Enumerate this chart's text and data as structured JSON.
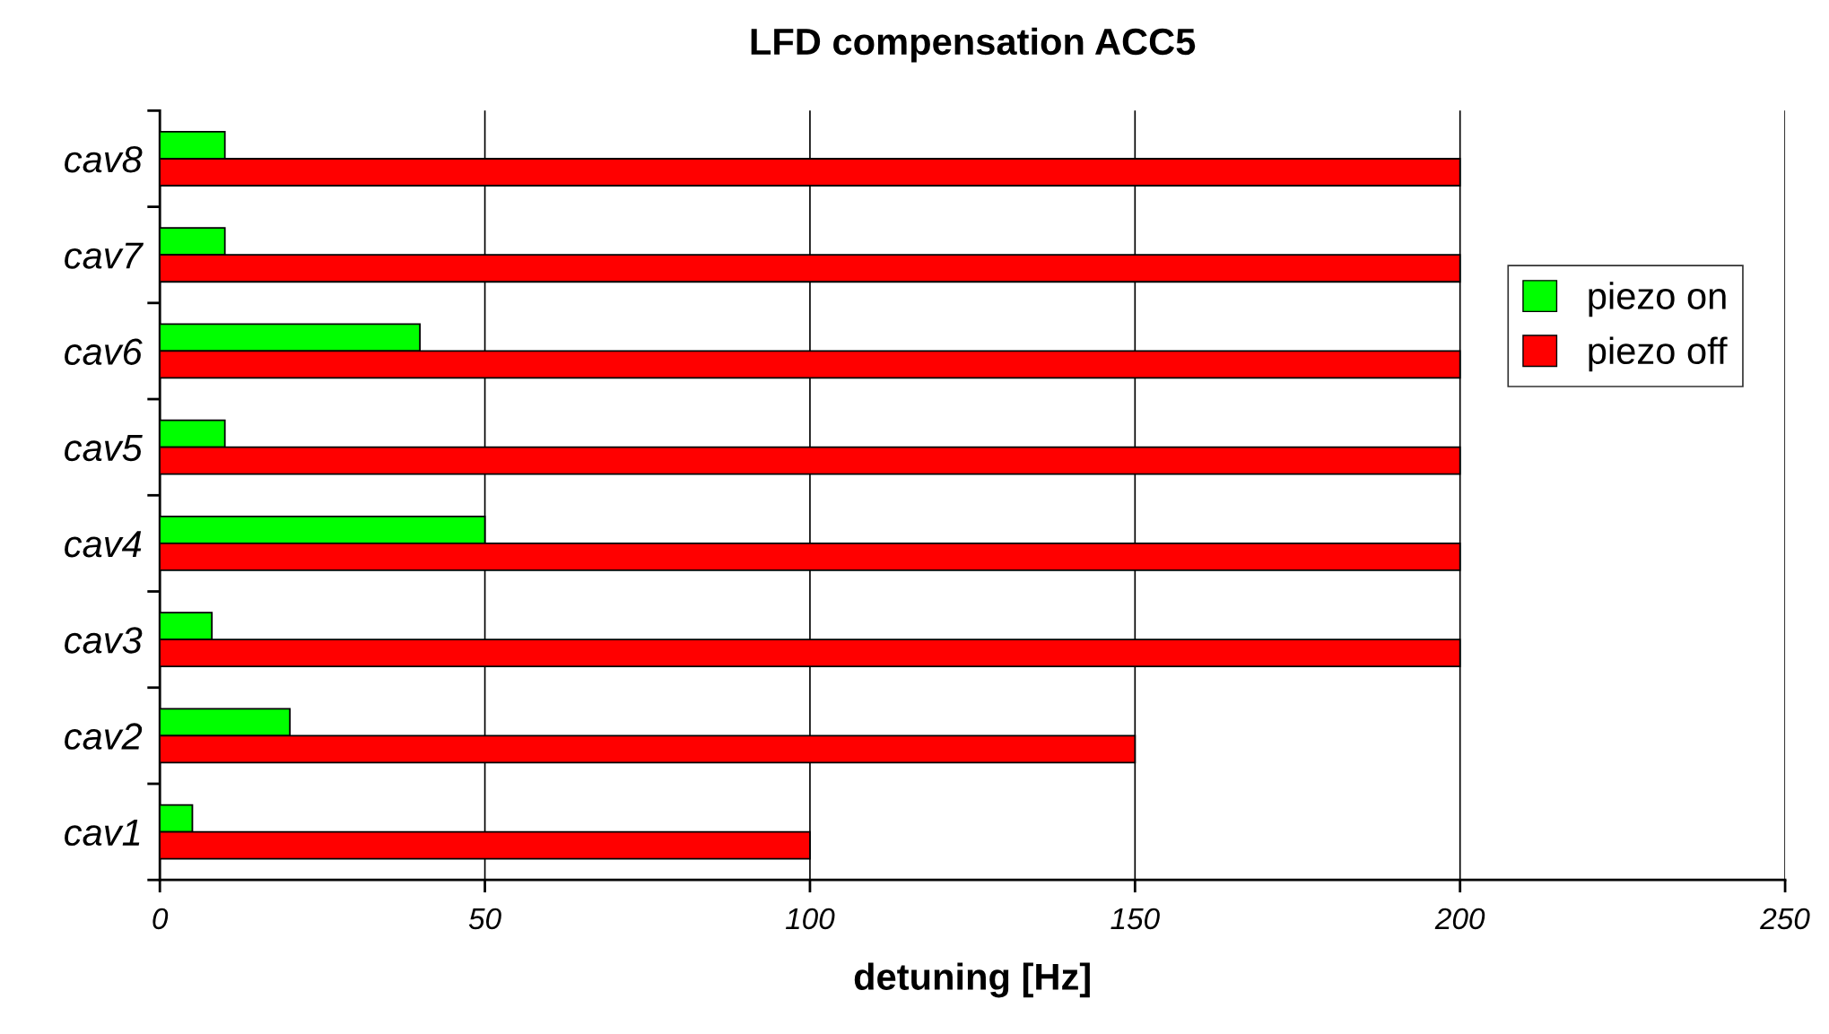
{
  "chart_data": {
    "type": "bar",
    "orientation": "horizontal",
    "title": "LFD compensation ACC5",
    "xlabel": "detuning [Hz]",
    "categories": [
      "cav8",
      "cav7",
      "cav6",
      "cav5",
      "cav4",
      "cav3",
      "cav2",
      "cav1"
    ],
    "series": [
      {
        "name": "piezo on",
        "color": "#00ff00",
        "values": [
          10,
          10,
          40,
          10,
          50,
          8,
          20,
          5
        ]
      },
      {
        "name": "piezo off",
        "color": "#ff0000",
        "values": [
          200,
          200,
          200,
          200,
          200,
          200,
          150,
          100
        ]
      }
    ],
    "xlim": [
      0,
      250
    ],
    "xticks": [
      0,
      50,
      100,
      150,
      200,
      250
    ],
    "grid": "x",
    "legend": "right"
  }
}
